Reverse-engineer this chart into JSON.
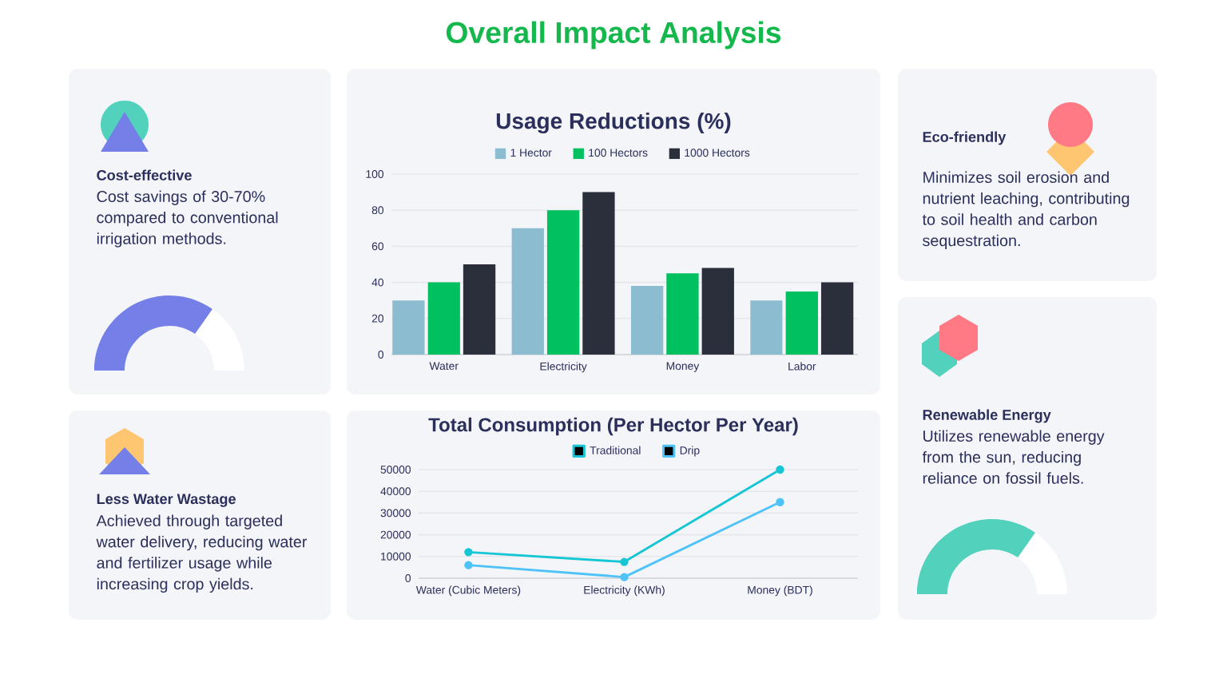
{
  "chart_data": [
    {
      "type": "other",
      "title": "Overall Impact Analysis"
    },
    {
      "type": "other",
      "title": "Cost-effective",
      "subtitle": "Cost savings of 30-70% compared to conventional irrigation methods."
    },
    {
      "type": "bar",
      "title": "Usage Reductions (%)",
      "categories": [
        "Water",
        "Electricity",
        "Money",
        "Labor"
      ],
      "series": [
        {
          "name": "1 Hector",
          "color": "#8bbcd0",
          "values": [
            30,
            70,
            38,
            30
          ]
        },
        {
          "name": "100 Hectors",
          "color": "#00c060",
          "values": [
            40,
            80,
            45,
            35
          ]
        },
        {
          "name": "1000 Hectors",
          "color": "#2b2f3c",
          "values": [
            50,
            90,
            48,
            40
          ]
        }
      ],
      "ylim": [
        0,
        100
      ],
      "yticks": [
        0,
        20,
        40,
        60,
        80,
        100
      ],
      "grid": "y",
      "legend": "top"
    },
    {
      "type": "other",
      "title": "Eco-friendly",
      "subtitle": "Minimizes soil erosion and nutrient leaching, contributing to soil health and carbon sequestration."
    },
    {
      "type": "other",
      "title": "Less Water Wastage",
      "subtitle": "Achieved through targeted water delivery, reducing water and fertilizer usage while increasing crop yields."
    },
    {
      "type": "line",
      "title": "Total Consumption (Per Hector Per Year)",
      "categories": [
        "Water (Cubic Meters)",
        "Electricity (KWh)",
        "Money (BDT)"
      ],
      "series": [
        {
          "name": "Traditional",
          "color": "#17c6d4",
          "values": [
            12000,
            7500,
            50000
          ]
        },
        {
          "name": "Drip",
          "color": "#4fc3f7",
          "values": [
            6000,
            500,
            35000
          ]
        }
      ],
      "ylim": [
        0,
        50000
      ],
      "yticks": [
        0,
        10000,
        20000,
        30000,
        40000,
        50000
      ],
      "grid": "y",
      "legend": "top",
      "marker": "circle"
    },
    {
      "type": "other",
      "title": "Renewable Energy",
      "subtitle": "Utilizes renewable energy from the sun, reducing reliance on fossil fuels."
    }
  ]
}
